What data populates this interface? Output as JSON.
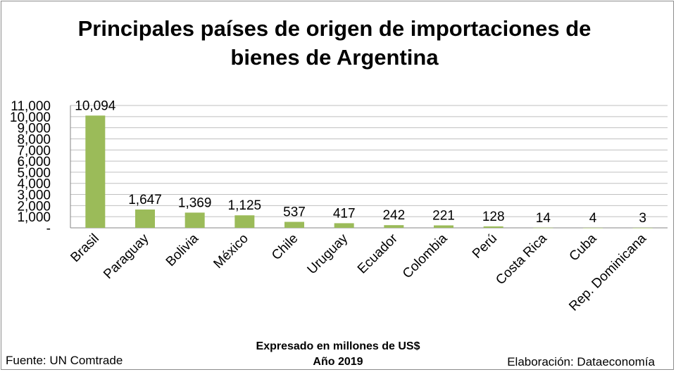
{
  "chart_data": {
    "type": "bar",
    "title": "Principales países de origen de importaciones de bienes de Argentina",
    "categories": [
      "Brasil",
      "Paraguay",
      "Bolivia",
      "México",
      "Chile",
      "Uruguay",
      "Ecuador",
      "Colombia",
      "Perú",
      "Costa Rica",
      "Cuba",
      "Rep. Dominicana"
    ],
    "values": [
      10094,
      1647,
      1369,
      1125,
      537,
      417,
      242,
      221,
      128,
      14,
      4,
      3
    ],
    "value_labels": [
      "10,094",
      "1,647",
      "1,369",
      "1,125",
      "537",
      "417",
      "242",
      "221",
      "128",
      "14",
      "4",
      "3"
    ],
    "y_ticks": [
      0,
      1000,
      2000,
      3000,
      4000,
      5000,
      6000,
      7000,
      8000,
      9000,
      10000,
      11000
    ],
    "y_tick_labels": [
      "-",
      "1,000",
      "2,000",
      "3,000",
      "4,000",
      "5,000",
      "6,000",
      "7,000",
      "8,000",
      "9,000",
      "10,000",
      "11,000"
    ],
    "ylim": [
      0,
      11000
    ],
    "grid": true,
    "legend": "none",
    "bar_color": "#9bbb59",
    "grid_color": "#bfbfbf"
  },
  "footer": {
    "source": "Fuente: UN Comtrade",
    "note_line1": "Expresado en millones de US$",
    "note_line2": "Año 2019",
    "credit": "Elaboración: Dataeconomía"
  }
}
